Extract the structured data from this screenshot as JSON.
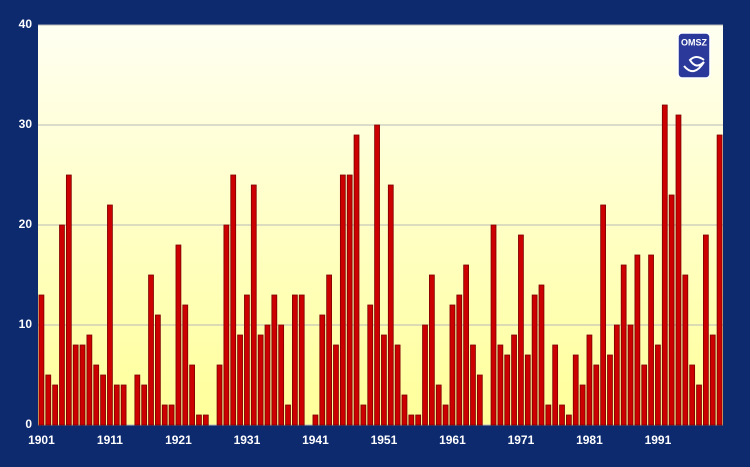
{
  "chart_data": {
    "type": "bar",
    "categories": [
      "1901",
      null,
      null,
      null,
      null,
      null,
      null,
      null,
      null,
      null,
      "1911",
      null,
      null,
      null,
      null,
      null,
      null,
      null,
      null,
      null,
      "1921",
      null,
      null,
      null,
      null,
      null,
      null,
      null,
      null,
      null,
      "1931",
      null,
      null,
      null,
      null,
      null,
      null,
      null,
      null,
      null,
      "1941",
      null,
      null,
      null,
      null,
      null,
      null,
      null,
      null,
      null,
      "1951",
      null,
      null,
      null,
      null,
      null,
      null,
      null,
      null,
      null,
      "1961",
      null,
      null,
      null,
      null,
      null,
      null,
      null,
      null,
      null,
      "1971",
      null,
      null,
      null,
      null,
      null,
      null,
      null,
      null,
      null,
      "1981",
      null,
      null,
      null,
      null,
      null,
      null,
      null,
      null,
      null,
      "1991",
      null,
      null,
      null,
      null,
      null,
      null,
      null,
      null,
      null
    ],
    "values": [
      13,
      5,
      4,
      20,
      25,
      8,
      8,
      9,
      6,
      5,
      22,
      4,
      4,
      0,
      5,
      4,
      15,
      11,
      2,
      2,
      18,
      12,
      6,
      1,
      1,
      0,
      6,
      20,
      25,
      9,
      13,
      24,
      9,
      10,
      13,
      10,
      2,
      13,
      13,
      0,
      1,
      11,
      15,
      8,
      25,
      25,
      29,
      2,
      12,
      30,
      9,
      24,
      8,
      3,
      1,
      1,
      10,
      15,
      4,
      2,
      12,
      13,
      16,
      8,
      5,
      0,
      20,
      8,
      7,
      9,
      19,
      7,
      13,
      14,
      2,
      8,
      2,
      1,
      7,
      4,
      9,
      6,
      22,
      7,
      10,
      16,
      10,
      17,
      6,
      17,
      8,
      32,
      23,
      31,
      15,
      6,
      4,
      19,
      9,
      29
    ],
    "color": "#cc0000",
    "ylim": [
      0,
      40
    ],
    "yticks": [
      0,
      10,
      20,
      30,
      40
    ],
    "grid": true,
    "logo": "OMSZ"
  }
}
